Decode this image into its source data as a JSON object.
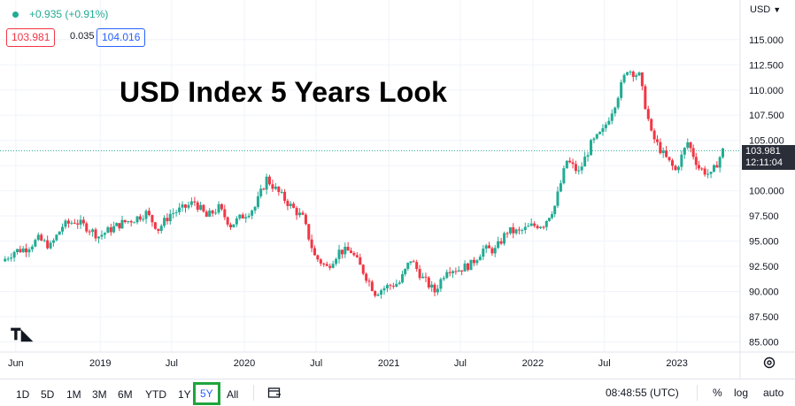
{
  "header": {
    "change_text": "+0.935 (+0.91%)",
    "bid": "103.981",
    "spread": "0.035",
    "ask": "104.016",
    "currency": "USD"
  },
  "chart_title": "USD Index 5 Years Look",
  "price_label": {
    "price": "103.981",
    "countdown": "12:11:04"
  },
  "bottom": {
    "ranges": [
      "1D",
      "5D",
      "1M",
      "3M",
      "6M",
      "YTD",
      "1Y",
      "5Y",
      "All"
    ],
    "active_range": "5Y",
    "clock": "08:48:55 (UTC)",
    "percent": "%",
    "log": "log",
    "auto": "auto"
  },
  "colors": {
    "up": "#22ab94",
    "down": "#f23645",
    "accent": "#2962ff",
    "active_border": "#1ea53c"
  },
  "chart_data": {
    "type": "line",
    "style": "candlestick",
    "title": "USD Index 5 Years Look",
    "x_tick_labels": [
      "Jun",
      "2019",
      "Jul",
      "2020",
      "Jul",
      "2021",
      "Jul",
      "2022",
      "Jul",
      "2023"
    ],
    "y_ticks": [
      "85.000",
      "87.500",
      "90.000",
      "92.500",
      "95.000",
      "97.500",
      "100.000",
      "102.500",
      "105.000",
      "107.500",
      "110.000",
      "112.500",
      "115.000"
    ],
    "ylim": [
      84,
      117
    ],
    "grid": true,
    "last_price": 103.981,
    "series": [
      {
        "x": [
          "2018-05",
          "2018-06",
          "2018-07",
          "2018-08",
          "2018-09",
          "2018-10",
          "2018-11",
          "2018-12",
          "2019-01",
          "2019-02",
          "2019-03",
          "2019-04",
          "2019-05",
          "2019-06",
          "2019-07",
          "2019-08",
          "2019-09",
          "2019-10",
          "2019-11",
          "2019-12",
          "2020-01",
          "2020-02",
          "2020-03",
          "2020-04",
          "2020-05",
          "2020-06",
          "2020-07",
          "2020-08",
          "2020-09",
          "2020-10",
          "2020-11",
          "2020-12",
          "2021-01",
          "2021-02",
          "2021-03",
          "2021-04",
          "2021-05",
          "2021-06",
          "2021-07",
          "2021-08",
          "2021-09",
          "2021-10",
          "2021-11",
          "2021-12",
          "2022-01",
          "2022-02",
          "2022-03",
          "2022-04",
          "2022-05",
          "2022-06",
          "2022-07",
          "2022-08",
          "2022-09",
          "2022-10",
          "2022-11",
          "2022-12",
          "2023-01",
          "2023-02",
          "2023-03",
          "2023-04",
          "2023-05"
        ],
        "values": [
          93.0,
          94.0,
          94.3,
          95.2,
          94.5,
          96.5,
          97.0,
          96.4,
          95.5,
          96.2,
          96.8,
          97.2,
          97.8,
          96.2,
          97.7,
          98.2,
          98.9,
          97.4,
          98.3,
          96.6,
          97.5,
          98.4,
          101.2,
          99.8,
          98.5,
          97.3,
          93.5,
          92.4,
          94.0,
          94.0,
          92.0,
          89.9,
          90.5,
          90.9,
          93.2,
          91.3,
          90.0,
          92.3,
          92.2,
          92.7,
          94.2,
          94.1,
          96.0,
          95.9,
          96.5,
          96.7,
          98.5,
          103.0,
          101.8,
          104.6,
          105.9,
          108.7,
          112.1,
          111.4,
          105.6,
          103.6,
          102.0,
          104.8,
          102.3,
          101.5,
          103.98
        ]
      }
    ]
  }
}
